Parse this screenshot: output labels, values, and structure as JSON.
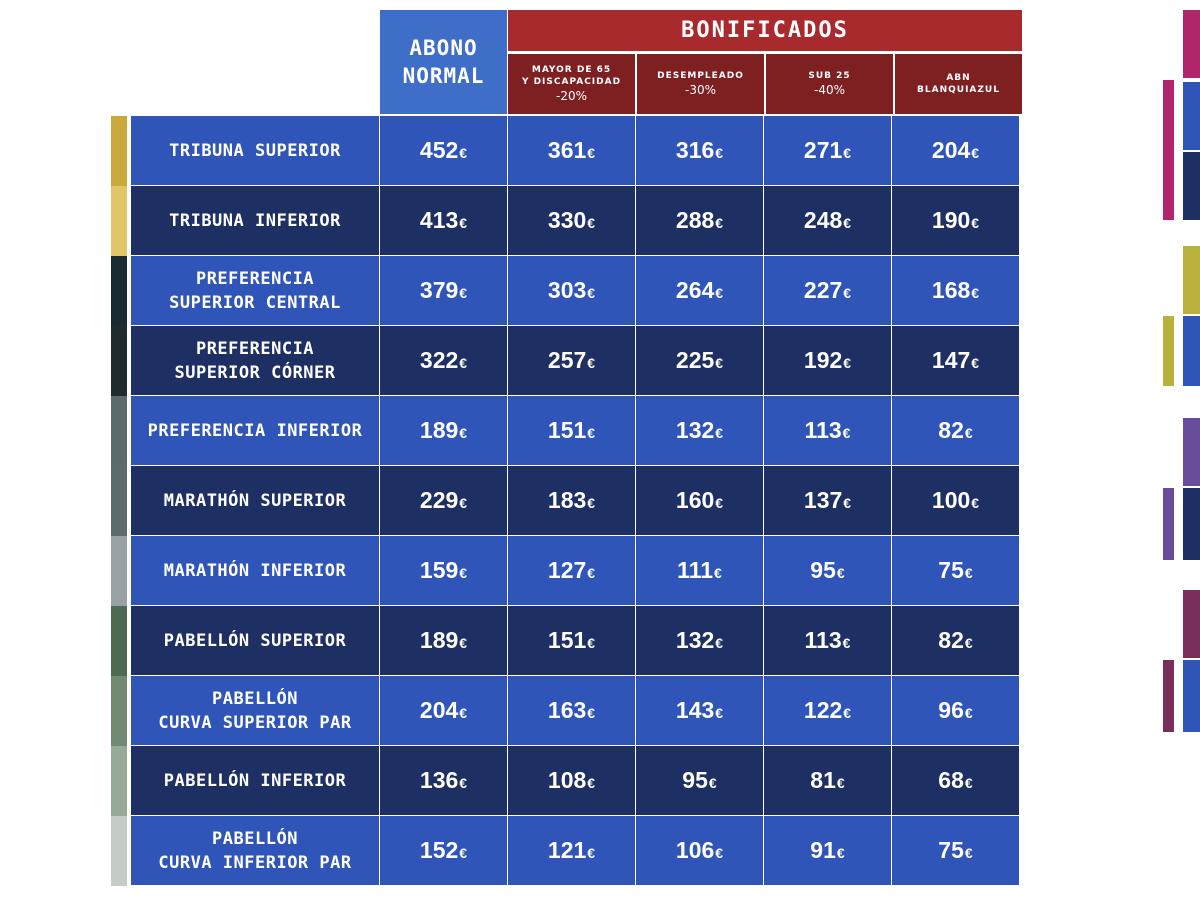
{
  "header": {
    "abono_line1": "ABONO",
    "abono_line2": "NORMAL",
    "bonificados": "BONIFICADOS"
  },
  "subheaders": [
    {
      "line1": "MAYOR DE 65",
      "line2": "Y DISCAPACIDAD",
      "pct": "-20%"
    },
    {
      "line1": "DESEMPLEADO",
      "line2": "",
      "pct": "-30%"
    },
    {
      "line1": "SUB 25",
      "line2": "",
      "pct": "-40%"
    },
    {
      "line1": "ABN",
      "line2": "BLANQUIAZUL",
      "pct": ""
    }
  ],
  "currency": "€",
  "rows": [
    {
      "label1": "TRIBUNA SUPERIOR",
      "label2": "",
      "prices": [
        "452",
        "361",
        "316",
        "271",
        "204"
      ]
    },
    {
      "label1": "TRIBUNA INFERIOR",
      "label2": "",
      "prices": [
        "413",
        "330",
        "288",
        "248",
        "190"
      ]
    },
    {
      "label1": "PREFERENCIA",
      "label2": "SUPERIOR CENTRAL",
      "prices": [
        "379",
        "303",
        "264",
        "227",
        "168"
      ]
    },
    {
      "label1": "PREFERENCIA",
      "label2": "SUPERIOR CÓRNER",
      "prices": [
        "322",
        "257",
        "225",
        "192",
        "147"
      ]
    },
    {
      "label1": "PREFERENCIA INFERIOR",
      "label2": "",
      "prices": [
        "189",
        "151",
        "132",
        "113",
        "82"
      ]
    },
    {
      "label1": "MARATHÓN SUPERIOR",
      "label2": "",
      "prices": [
        "229",
        "183",
        "160",
        "137",
        "100"
      ]
    },
    {
      "label1": "MARATHÓN INFERIOR",
      "label2": "",
      "prices": [
        "159",
        "127",
        "111",
        "95",
        "75"
      ]
    },
    {
      "label1": "PABELLÓN SUPERIOR",
      "label2": "",
      "prices": [
        "189",
        "151",
        "132",
        "113",
        "82"
      ]
    },
    {
      "label1": "PABELLÓN",
      "label2": "CURVA SUPERIOR PAR",
      "prices": [
        "204",
        "163",
        "143",
        "122",
        "96"
      ]
    },
    {
      "label1": "PABELLÓN INFERIOR",
      "label2": "",
      "prices": [
        "136",
        "108",
        "95",
        "81",
        "68"
      ]
    },
    {
      "label1": "PABELLÓN",
      "label2": "CURVA INFERIOR PAR",
      "prices": [
        "152",
        "121",
        "106",
        "91",
        "75"
      ]
    }
  ],
  "colors": {
    "abono_header": "#3f6ec9",
    "bonificados_header": "#a82a2c",
    "subheader": "#7e1f22",
    "row_light": "#2f55b8",
    "row_dark": "#1e3063"
  },
  "strip_colors": [
    "#c9a93c",
    "#e2c566",
    "#1b2a30",
    "#1f2b2e",
    "#5d6a6c",
    "#5e6b6e",
    "#98a2a4",
    "#4f6a52",
    "#728a73",
    "#97aa98",
    "#c4cdc3"
  ]
}
